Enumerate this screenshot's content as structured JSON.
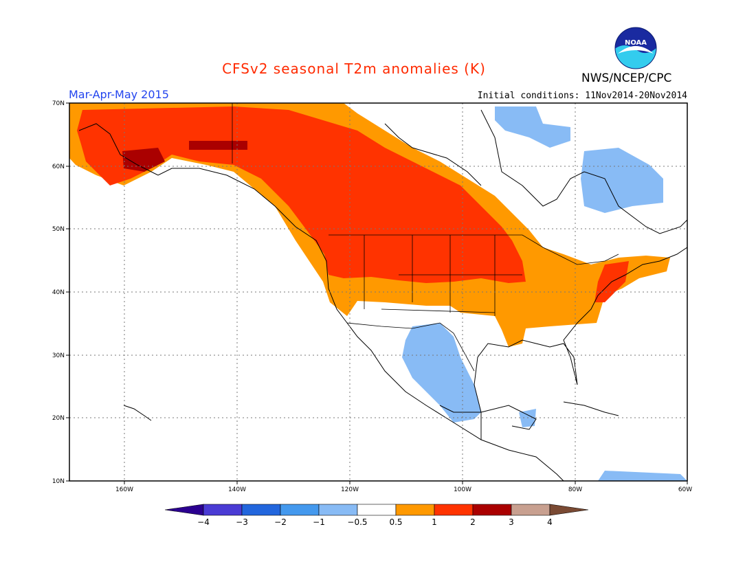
{
  "header": {
    "title": "CFSv2 seasonal T2m anomalies (K)",
    "agency": "NWS/NCEP/CPC",
    "logo_text": "NOAA",
    "season": "Mar-Apr-May 2015",
    "initial_conditions": "Initial conditions: 11Nov2014-20Nov2014"
  },
  "map": {
    "projection": "lat-lon",
    "lon_range": [
      -172,
      -60
    ],
    "lat_range": [
      10,
      70
    ],
    "lat_ticks": [
      "10N",
      "20N",
      "30N",
      "40N",
      "50N",
      "60N",
      "70N"
    ],
    "lon_ticks": [
      "160W",
      "140W",
      "120W",
      "100W",
      "80W",
      "60W"
    ],
    "grid": "dotted",
    "anomaly_regions": [
      {
        "region": "Alaska, western and central Canada",
        "category": "1 to 2"
      },
      {
        "region": "Southern Alaska interior",
        "category": "2 to 3"
      },
      {
        "region": "Northern Plains and Great Lakes",
        "category": "1 to 2"
      },
      {
        "region": "Eastern Canada and Ohio Valley",
        "category": "0.5 to 1"
      },
      {
        "region": "US Southwest and Mexico",
        "category": "-1 to -0.5"
      },
      {
        "region": "Northern Quebec and Baffin",
        "category": "-1 to -0.5"
      }
    ]
  },
  "colorbar": {
    "labels": [
      "-4",
      "-3",
      "-2",
      "-1",
      "-0.5",
      "0.5",
      "1",
      "2",
      "3",
      "4"
    ],
    "colors": [
      "#2b0090",
      "#4a3bd4",
      "#2266dd",
      "#4499ee",
      "#88bbf5",
      "#ffffff",
      "#ff9900",
      "#ff3300",
      "#aa0000",
      "#c8a090",
      "#7a4a33"
    ]
  }
}
